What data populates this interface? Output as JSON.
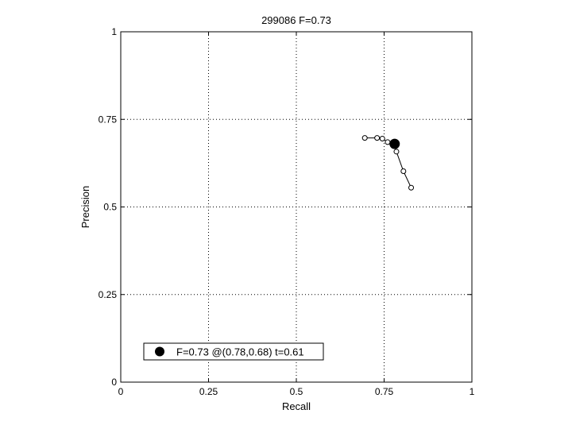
{
  "chart_data": {
    "type": "line",
    "title": "299086 F=0.73",
    "xlabel": "Recall",
    "ylabel": "Precision",
    "xlim": [
      0,
      1
    ],
    "ylim": [
      0,
      1
    ],
    "grid": true,
    "grid_style": "dotted",
    "xticks": [
      0,
      0.25,
      0.5,
      0.75,
      1
    ],
    "xtick_labels": [
      "0",
      "0.25",
      "0.5",
      "0.75",
      "1"
    ],
    "yticks": [
      0,
      0.25,
      0.5,
      0.75,
      1
    ],
    "ytick_labels": [
      "0",
      "0.25",
      "0.5",
      "0.75",
      "1"
    ],
    "series": [
      {
        "marker": "open-circle",
        "x": [
          0.695,
          0.73,
          0.745,
          0.76,
          0.78,
          0.785,
          0.805,
          0.827
        ],
        "y": [
          0.697,
          0.697,
          0.695,
          0.685,
          0.677,
          0.658,
          0.602,
          0.555
        ]
      }
    ],
    "highlight": {
      "x": 0.78,
      "y": 0.68,
      "marker": "filled-circle"
    },
    "legend": {
      "position": "bottom-left",
      "entries": [
        {
          "label": "F=0.73 @(0.78,0.68) t=0.61",
          "marker": "filled-circle"
        }
      ]
    },
    "colors": {
      "line": "#000000",
      "grid": "#000000",
      "background": "#ffffff"
    }
  }
}
